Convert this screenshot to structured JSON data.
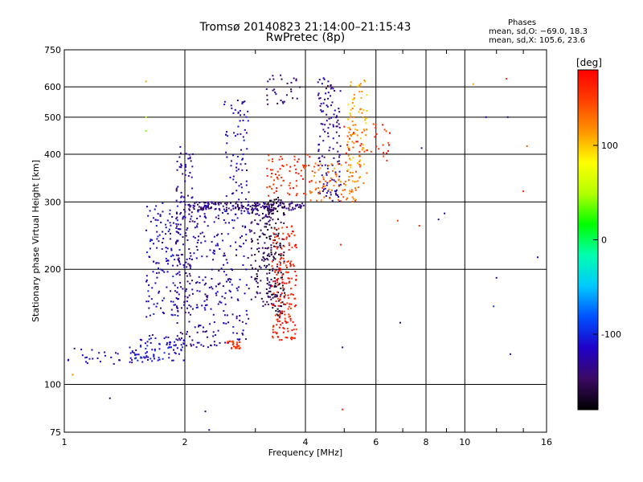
{
  "chart_data": {
    "type": "scatter",
    "title": "Tromsø 20140823 21:14:00–21:15:43",
    "subtitle": "RwPretec (8p)",
    "xlabel": "Frequency [MHz]",
    "ylabel": "Stationary phase Virtual Height [km]",
    "x_scale": "log",
    "y_scale": "log",
    "xlim": [
      1,
      16
    ],
    "ylim": [
      75,
      750
    ],
    "x_ticks": [
      1,
      2,
      4,
      6,
      8,
      10,
      16
    ],
    "x_tick_labels": [
      "1",
      "2",
      "4",
      "6",
      "8",
      "10",
      "16"
    ],
    "y_ticks": [
      75,
      100,
      200,
      300,
      400,
      500,
      600,
      750
    ],
    "y_tick_labels": [
      "75",
      "100",
      "200",
      "300",
      "400",
      "500",
      "600",
      "750"
    ],
    "grid": true,
    "colorbar": {
      "label": "[deg]",
      "range": [
        -180,
        180
      ],
      "ticks": [
        -100,
        0,
        100
      ],
      "tick_labels": [
        "-100",
        "0",
        "100"
      ],
      "colormap": [
        "#000000",
        "#3c0a64",
        "#1f00c8",
        "#0050ff",
        "#00c8ff",
        "#00ffb0",
        "#00ff00",
        "#b4ff00",
        "#ffff00",
        "#ff9600",
        "#ff4000",
        "#ff0000"
      ]
    },
    "legend_text": {
      "heading": "Phases",
      "line1": "mean, sd,O: −69.0, 18.3",
      "line2": "mean, sd,X: 105.6, 23.6"
    },
    "clusters": [
      {
        "x": [
          1.02,
          1.6
        ],
        "y": [
          112,
          125
        ],
        "phase_mean": -120,
        "count": 40
      },
      {
        "x": [
          1.5,
          2.0
        ],
        "y": [
          115,
          135
        ],
        "phase_mean": -110,
        "count": 80
      },
      {
        "x": [
          1.6,
          1.95
        ],
        "y": [
          150,
          300
        ],
        "phase_mean": -115,
        "count": 140
      },
      {
        "x": [
          1.9,
          2.1
        ],
        "y": [
          125,
          420
        ],
        "phase_mean": -130,
        "count": 160
      },
      {
        "x": [
          2.1,
          2.5
        ],
        "y": [
          125,
          300
        ],
        "phase_mean": -125,
        "count": 140
      },
      {
        "x": [
          2.5,
          2.9
        ],
        "y": [
          128,
          560
        ],
        "phase_mean": -120,
        "count": 170
      },
      {
        "x": [
          2.55,
          2.75
        ],
        "y": [
          124,
          130
        ],
        "phase_mean": 160,
        "count": 25
      },
      {
        "x": [
          2.9,
          3.3
        ],
        "y": [
          160,
          300
        ],
        "phase_mean": -150,
        "count": 130
      },
      {
        "x": [
          3.2,
          3.55
        ],
        "y": [
          150,
          310
        ],
        "phase_mean": -160,
        "count": 150
      },
      {
        "x": [
          2.0,
          4.0
        ],
        "y": [
          285,
          300
        ],
        "phase_mean": -140,
        "count": 150
      },
      {
        "x": [
          3.3,
          3.8
        ],
        "y": [
          130,
          260
        ],
        "phase_mean": 165,
        "count": 180
      },
      {
        "x": [
          3.2,
          4.1
        ],
        "y": [
          310,
          400
        ],
        "phase_mean": 160,
        "count": 70
      },
      {
        "x": [
          3.2,
          3.9
        ],
        "y": [
          540,
          650
        ],
        "phase_mean": -140,
        "count": 30
      },
      {
        "x": [
          4.3,
          4.9
        ],
        "y": [
          300,
          640
        ],
        "phase_mean": -130,
        "count": 130
      },
      {
        "x": [
          4.1,
          5.5
        ],
        "y": [
          300,
          380
        ],
        "phase_mean": 130,
        "count": 90
      },
      {
        "x": [
          5.1,
          5.7
        ],
        "y": [
          330,
          650
        ],
        "phase_mean": 110,
        "count": 90
      },
      {
        "x": [
          5.0,
          6.5
        ],
        "y": [
          380,
          480
        ],
        "phase_mean": 160,
        "count": 40
      }
    ],
    "scattered_points": [
      {
        "x": 1.3,
        "y": 92,
        "phase": -150
      },
      {
        "x": 1.05,
        "y": 106,
        "phase": 120
      },
      {
        "x": 2.25,
        "y": 85,
        "phase": -140
      },
      {
        "x": 2.3,
        "y": 76,
        "phase": -130
      },
      {
        "x": 4.95,
        "y": 86,
        "phase": 160
      },
      {
        "x": 4.95,
        "y": 125,
        "phase": -130
      },
      {
        "x": 6.9,
        "y": 145,
        "phase": -140
      },
      {
        "x": 4.9,
        "y": 232,
        "phase": 160
      },
      {
        "x": 6.8,
        "y": 268,
        "phase": 150
      },
      {
        "x": 8.6,
        "y": 270,
        "phase": -130
      },
      {
        "x": 8.9,
        "y": 280,
        "phase": -120
      },
      {
        "x": 10.5,
        "y": 610,
        "phase": 110
      },
      {
        "x": 12.7,
        "y": 630,
        "phase": 150
      },
      {
        "x": 11.3,
        "y": 500,
        "phase": -120
      },
      {
        "x": 12.8,
        "y": 500,
        "phase": -130
      },
      {
        "x": 12.0,
        "y": 190,
        "phase": -120
      },
      {
        "x": 11.8,
        "y": 160,
        "phase": -90
      },
      {
        "x": 13.0,
        "y": 120,
        "phase": -130
      },
      {
        "x": 14.0,
        "y": 320,
        "phase": 160
      },
      {
        "x": 15.2,
        "y": 215,
        "phase": -120
      },
      {
        "x": 14.3,
        "y": 420,
        "phase": 140
      },
      {
        "x": 1.6,
        "y": 620,
        "phase": 110
      },
      {
        "x": 1.6,
        "y": 500,
        "phase": 50
      },
      {
        "x": 1.6,
        "y": 460,
        "phase": 40
      },
      {
        "x": 7.7,
        "y": 260,
        "phase": 160
      },
      {
        "x": 7.8,
        "y": 415,
        "phase": -130
      }
    ]
  }
}
